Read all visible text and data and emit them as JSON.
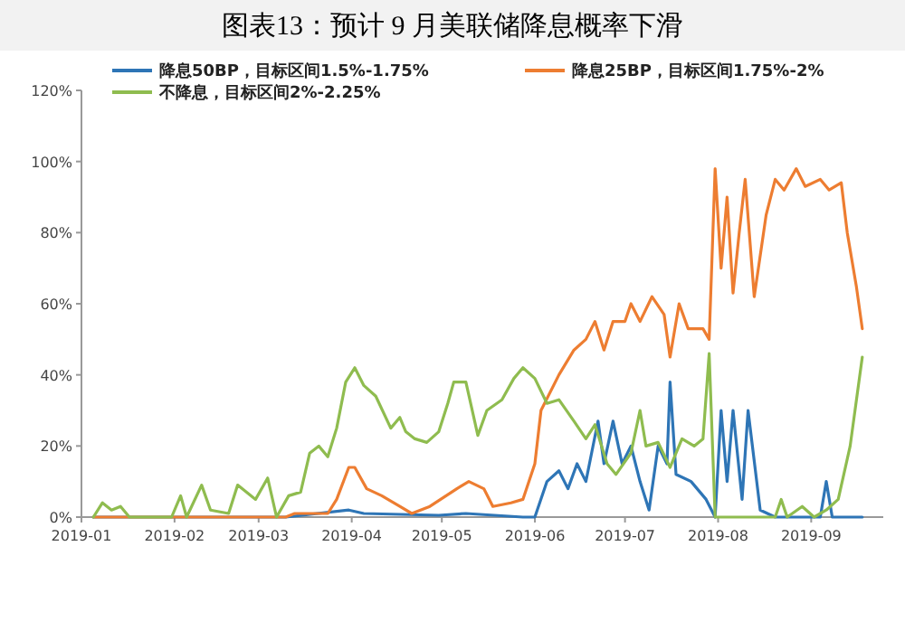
{
  "chart_data": {
    "type": "line",
    "title": "图表13：预计 9 月美联储降息概率下滑",
    "legend": "top",
    "grid": false,
    "marker": "none",
    "line_style": "solid",
    "xlim": [
      "2019-01-01",
      "2019-09-25"
    ],
    "xticks": [
      {
        "value": "2019-01-01",
        "label": "2019-01"
      },
      {
        "value": "2019-02-01",
        "label": "2019-02"
      },
      {
        "value": "2019-03-01",
        "label": "2019-03"
      },
      {
        "value": "2019-04-01",
        "label": "2019-04"
      },
      {
        "value": "2019-05-01",
        "label": "2019-05"
      },
      {
        "value": "2019-06-01",
        "label": "2019-06"
      },
      {
        "value": "2019-07-01",
        "label": "2019-07"
      },
      {
        "value": "2019-08-01",
        "label": "2019-08"
      },
      {
        "value": "2019-09-01",
        "label": "2019-09"
      }
    ],
    "ylim": [
      0,
      120
    ],
    "yticks": [
      {
        "value": 0,
        "label": "0%"
      },
      {
        "value": 20,
        "label": "20%"
      },
      {
        "value": 40,
        "label": "40%"
      },
      {
        "value": 60,
        "label": "60%"
      },
      {
        "value": 80,
        "label": "80%"
      },
      {
        "value": 100,
        "label": "100%"
      },
      {
        "value": 120,
        "label": "120%"
      }
    ],
    "series": [
      {
        "name": "降息50BP，目标区间1.5%-1.75%",
        "color": "#2e75b6",
        "x": [
          "2019-01-05",
          "2019-03-10",
          "2019-03-31",
          "2019-04-05",
          "2019-04-30",
          "2019-05-09",
          "2019-05-28",
          "2019-06-01",
          "2019-06-05",
          "2019-06-09",
          "2019-06-12",
          "2019-06-15",
          "2019-06-18",
          "2019-06-22",
          "2019-06-24",
          "2019-06-27",
          "2019-06-30",
          "2019-07-03",
          "2019-07-06",
          "2019-07-09",
          "2019-07-12",
          "2019-07-15",
          "2019-07-16",
          "2019-07-18",
          "2019-07-23",
          "2019-07-28",
          "2019-07-31",
          "2019-08-02",
          "2019-08-04",
          "2019-08-06",
          "2019-08-09",
          "2019-08-11",
          "2019-08-15",
          "2019-08-20",
          "2019-09-04",
          "2019-09-06",
          "2019-09-08",
          "2019-09-18"
        ],
        "values": [
          0,
          0,
          2,
          1,
          0.5,
          1,
          0,
          0,
          10,
          13,
          8,
          15,
          10,
          27,
          15,
          27,
          15,
          20,
          10,
          2,
          20,
          15,
          38,
          12,
          10,
          5,
          0,
          30,
          10,
          30,
          5,
          30,
          2,
          0,
          0,
          10,
          0,
          0
        ]
      },
      {
        "name": "降息25BP，目标区间1.75%-2%",
        "color": "#ed7d31",
        "x": [
          "2019-01-05",
          "2019-03-10",
          "2019-03-13",
          "2019-03-24",
          "2019-03-27",
          "2019-03-31",
          "2019-04-02",
          "2019-04-06",
          "2019-04-11",
          "2019-04-17",
          "2019-04-21",
          "2019-04-27",
          "2019-05-06",
          "2019-05-10",
          "2019-05-15",
          "2019-05-18",
          "2019-05-24",
          "2019-05-28",
          "2019-06-01",
          "2019-06-03",
          "2019-06-09",
          "2019-06-14",
          "2019-06-18",
          "2019-06-21",
          "2019-06-24",
          "2019-06-27",
          "2019-07-01",
          "2019-07-03",
          "2019-07-06",
          "2019-07-10",
          "2019-07-14",
          "2019-07-16",
          "2019-07-19",
          "2019-07-22",
          "2019-07-27",
          "2019-07-29",
          "2019-07-31",
          "2019-08-02",
          "2019-08-04",
          "2019-08-06",
          "2019-08-08",
          "2019-08-10",
          "2019-08-13",
          "2019-08-17",
          "2019-08-20",
          "2019-08-23",
          "2019-08-27",
          "2019-08-30",
          "2019-09-04",
          "2019-09-07",
          "2019-09-11",
          "2019-09-13",
          "2019-09-16",
          "2019-09-18"
        ],
        "values": [
          0,
          0,
          1,
          1,
          5,
          14,
          14,
          8,
          6,
          3,
          1,
          3,
          8,
          10,
          8,
          3,
          4,
          5,
          15,
          30,
          40,
          47,
          50,
          55,
          47,
          55,
          55,
          60,
          55,
          62,
          57,
          45,
          60,
          53,
          53,
          50,
          98,
          70,
          90,
          63,
          80,
          95,
          62,
          85,
          95,
          92,
          98,
          93,
          95,
          92,
          94,
          80,
          65,
          53
        ]
      },
      {
        "name": "不降息，目标区间2%-2.25%",
        "color": "#8fbc4f",
        "x": [
          "2019-01-05",
          "2019-01-08",
          "2019-01-11",
          "2019-01-14",
          "2019-01-17",
          "2019-01-31",
          "2019-02-03",
          "2019-02-05",
          "2019-02-10",
          "2019-02-13",
          "2019-02-19",
          "2019-02-22",
          "2019-02-28",
          "2019-03-04",
          "2019-03-07",
          "2019-03-11",
          "2019-03-15",
          "2019-03-18",
          "2019-03-21",
          "2019-03-24",
          "2019-03-27",
          "2019-03-30",
          "2019-04-02",
          "2019-04-05",
          "2019-04-09",
          "2019-04-14",
          "2019-04-17",
          "2019-04-19",
          "2019-04-22",
          "2019-04-26",
          "2019-04-30",
          "2019-05-03",
          "2019-05-05",
          "2019-05-09",
          "2019-05-13",
          "2019-05-16",
          "2019-05-21",
          "2019-05-25",
          "2019-05-28",
          "2019-06-01",
          "2019-06-05",
          "2019-06-09",
          "2019-06-14",
          "2019-06-18",
          "2019-06-21",
          "2019-06-25",
          "2019-06-28",
          "2019-07-03",
          "2019-07-06",
          "2019-07-08",
          "2019-07-12",
          "2019-07-16",
          "2019-07-20",
          "2019-07-24",
          "2019-07-27",
          "2019-07-29",
          "2019-07-31",
          "2019-08-20",
          "2019-08-22",
          "2019-08-24",
          "2019-08-29",
          "2019-09-02",
          "2019-09-06",
          "2019-09-10",
          "2019-09-14",
          "2019-09-18"
        ],
        "values": [
          0,
          4,
          2,
          3,
          0,
          0,
          6,
          0,
          9,
          2,
          1,
          9,
          5,
          11,
          0,
          6,
          7,
          18,
          20,
          17,
          25,
          38,
          42,
          37,
          34,
          25,
          28,
          24,
          22,
          21,
          24,
          32,
          38,
          38,
          23,
          30,
          33,
          39,
          42,
          39,
          32,
          33,
          27,
          22,
          26,
          15,
          12,
          18,
          30,
          20,
          21,
          14,
          22,
          20,
          22,
          46,
          0,
          0,
          5,
          0,
          3,
          0,
          2,
          5,
          20,
          45
        ]
      }
    ]
  }
}
